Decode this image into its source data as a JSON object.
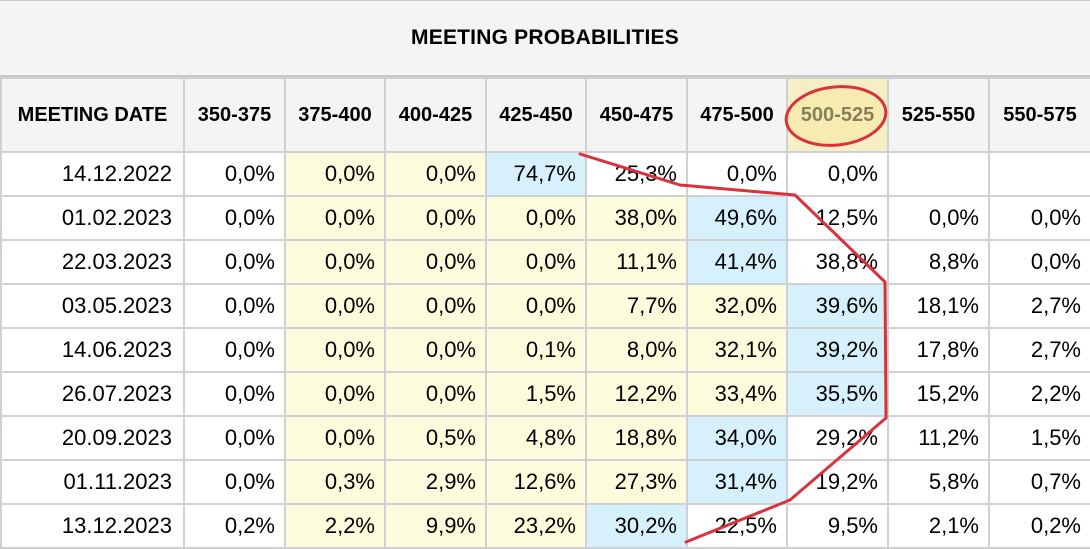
{
  "title": "MEETING PROBABILITIES",
  "headers": [
    "MEETING DATE",
    "350-375",
    "375-400",
    "400-425",
    "425-450",
    "450-475",
    "475-500",
    "500-525",
    "525-550",
    "550-575"
  ],
  "highlighted_header": "500-525",
  "colors": {
    "yellow": "#fcfbdc",
    "blue": "#d6f1fb",
    "annotation": "#d9323c"
  },
  "rows": [
    {
      "date": "14.12.2022",
      "values": [
        "0,0%",
        "0,0%",
        "0,0%",
        "74,7%",
        "25,3%",
        "0,0%",
        "0,0%",
        "",
        ""
      ],
      "shade": [
        "w",
        "y",
        "y",
        "b",
        "w",
        "w",
        "w",
        "w",
        "w"
      ]
    },
    {
      "date": "01.02.2023",
      "values": [
        "0,0%",
        "0,0%",
        "0,0%",
        "0,0%",
        "38,0%",
        "49,6%",
        "12,5%",
        "0,0%",
        "0,0%"
      ],
      "shade": [
        "w",
        "y",
        "y",
        "y",
        "y",
        "b",
        "w",
        "w",
        "w"
      ]
    },
    {
      "date": "22.03.2023",
      "values": [
        "0,0%",
        "0,0%",
        "0,0%",
        "0,0%",
        "11,1%",
        "41,4%",
        "38,8%",
        "8,8%",
        "0,0%"
      ],
      "shade": [
        "w",
        "y",
        "y",
        "y",
        "y",
        "b",
        "w",
        "w",
        "w"
      ]
    },
    {
      "date": "03.05.2023",
      "values": [
        "0,0%",
        "0,0%",
        "0,0%",
        "0,0%",
        "7,7%",
        "32,0%",
        "39,6%",
        "18,1%",
        "2,7%"
      ],
      "shade": [
        "w",
        "y",
        "y",
        "y",
        "y",
        "y",
        "b",
        "w",
        "w"
      ]
    },
    {
      "date": "14.06.2023",
      "values": [
        "0,0%",
        "0,0%",
        "0,0%",
        "0,1%",
        "8,0%",
        "32,1%",
        "39,2%",
        "17,8%",
        "2,7%"
      ],
      "shade": [
        "w",
        "y",
        "y",
        "y",
        "y",
        "y",
        "b",
        "w",
        "w"
      ]
    },
    {
      "date": "26.07.2023",
      "values": [
        "0,0%",
        "0,0%",
        "0,0%",
        "1,5%",
        "12,2%",
        "33,4%",
        "35,5%",
        "15,2%",
        "2,2%"
      ],
      "shade": [
        "w",
        "y",
        "y",
        "y",
        "y",
        "y",
        "b",
        "w",
        "w"
      ]
    },
    {
      "date": "20.09.2023",
      "values": [
        "0,0%",
        "0,0%",
        "0,5%",
        "4,8%",
        "18,8%",
        "34,0%",
        "29,2%",
        "11,2%",
        "1,5%"
      ],
      "shade": [
        "w",
        "y",
        "y",
        "y",
        "y",
        "b",
        "w",
        "w",
        "w"
      ]
    },
    {
      "date": "01.11.2023",
      "values": [
        "0,0%",
        "0,3%",
        "2,9%",
        "12,6%",
        "27,3%",
        "31,4%",
        "19,2%",
        "5,8%",
        "0,7%"
      ],
      "shade": [
        "w",
        "y",
        "y",
        "y",
        "y",
        "b",
        "w",
        "w",
        "w"
      ]
    },
    {
      "date": "13.12.2023",
      "values": [
        "0,2%",
        "2,2%",
        "9,9%",
        "23,2%",
        "30,2%",
        "22,5%",
        "9,5%",
        "2,1%",
        "0,2%"
      ],
      "shade": [
        "w",
        "y",
        "y",
        "y",
        "b",
        "w",
        "w",
        "w",
        "w"
      ]
    }
  ]
}
